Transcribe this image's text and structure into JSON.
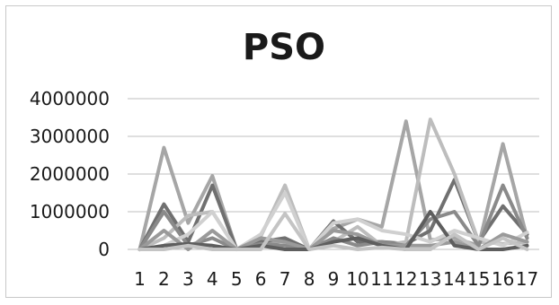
{
  "chart_data": {
    "type": "line",
    "title": "PSO",
    "xlabel": "",
    "ylabel": "",
    "categories": [
      "1",
      "2",
      "3",
      "4",
      "5",
      "6",
      "7",
      "8",
      "9",
      "10",
      "11",
      "12",
      "13",
      "14",
      "15",
      "16",
      "17"
    ],
    "ylim": [
      0,
      4000000
    ],
    "yticks": [
      0,
      1000000,
      2000000,
      3000000,
      4000000
    ],
    "ytick_labels": [
      "0",
      "1000000",
      "2000000",
      "3000000",
      "4000000"
    ],
    "grid": true,
    "legend": "none",
    "series": [
      {
        "color": "#a6a6a6",
        "values": [
          0,
          2700000,
          700000,
          1950000,
          0,
          100000,
          250000,
          0,
          550000,
          800000,
          600000,
          3400000,
          250000,
          300000,
          100000,
          2800000,
          300000
        ]
      },
      {
        "color": "#707070",
        "values": [
          0,
          1200000,
          200000,
          1700000,
          0,
          200000,
          300000,
          0,
          750000,
          200000,
          200000,
          150000,
          500000,
          1850000,
          200000,
          1150000,
          400000
        ]
      },
      {
        "color": "#bdbdbd",
        "values": [
          0,
          300000,
          900000,
          1000000,
          0,
          350000,
          1700000,
          0,
          200000,
          600000,
          100000,
          200000,
          3450000,
          2000000,
          200000,
          150000,
          200000
        ]
      },
      {
        "color": "#8a8a8a",
        "values": [
          0,
          1000000,
          100000,
          300000,
          0,
          150000,
          100000,
          0,
          300000,
          100000,
          200000,
          100000,
          800000,
          1000000,
          100000,
          1700000,
          300000
        ]
      },
      {
        "color": "#d0d0d0",
        "values": [
          0,
          100000,
          400000,
          1000000,
          0,
          400000,
          1500000,
          0,
          700000,
          800000,
          500000,
          400000,
          200000,
          500000,
          300000,
          100000,
          450000
        ]
      },
      {
        "color": "#9a9a9a",
        "values": [
          0,
          500000,
          0,
          500000,
          0,
          300000,
          200000,
          0,
          500000,
          400000,
          100000,
          100000,
          100000,
          200000,
          0,
          400000,
          200000
        ]
      },
      {
        "color": "#5e5e5e",
        "values": [
          0,
          100000,
          150000,
          100000,
          0,
          100000,
          0,
          0,
          200000,
          300000,
          100000,
          0,
          1000000,
          100000,
          0,
          0,
          100000
        ]
      },
      {
        "color": "#c4c4c4",
        "values": [
          0,
          0,
          100000,
          0,
          0,
          0,
          950000,
          0,
          100000,
          0,
          50000,
          0,
          0,
          400000,
          0,
          300000,
          0
        ]
      }
    ]
  }
}
